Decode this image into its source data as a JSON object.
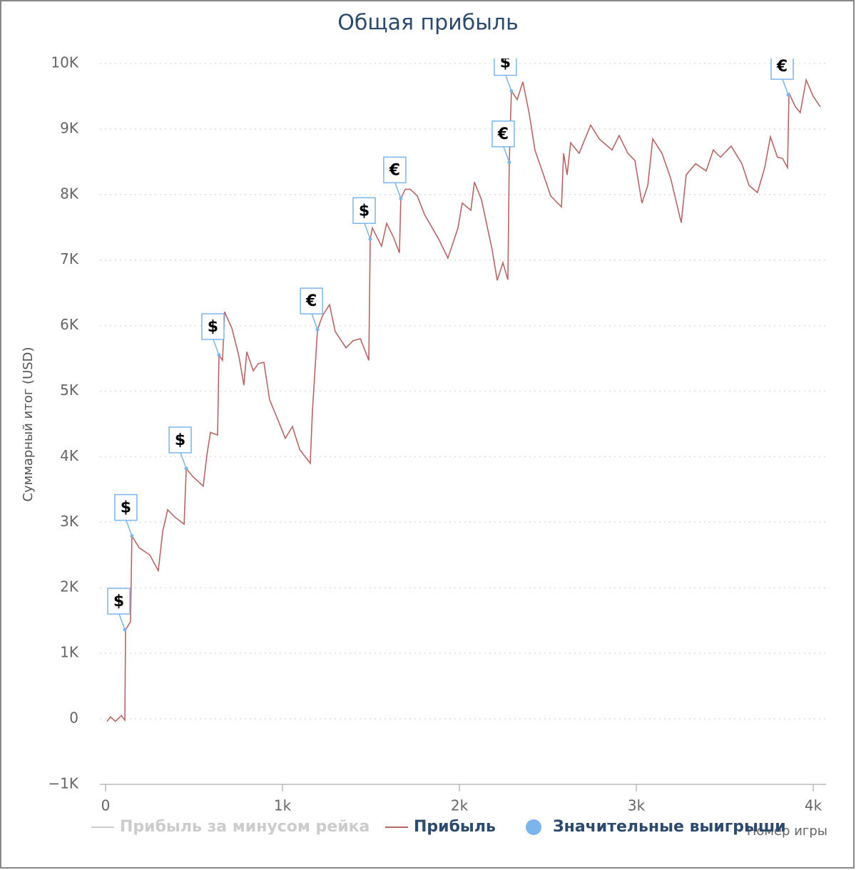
{
  "chart_data": {
    "type": "line",
    "title": "Общая прибыль",
    "x_label": "Номер игры",
    "y_label": "Суммарный итог (USD)",
    "xlim": [
      -30,
      4050
    ],
    "ylim": [
      -1000,
      10000
    ],
    "xticks": [
      0,
      {
        "value": 1000,
        "label": "1k"
      },
      {
        "value": 2000,
        "label": "2k"
      },
      {
        "value": 3000,
        "label": "3k"
      },
      {
        "value": 4000,
        "label": "4k"
      }
    ],
    "yticks": [
      {
        "value": -1000,
        "label": "−1K"
      },
      0,
      {
        "value": 1000,
        "label": "1K"
      },
      {
        "value": 2000,
        "label": "2K"
      },
      {
        "value": 3000,
        "label": "3K"
      },
      {
        "value": 4000,
        "label": "4K"
      },
      {
        "value": 5000,
        "label": "5K"
      },
      {
        "value": 6000,
        "label": "6K"
      },
      {
        "value": 7000,
        "label": "7K"
      },
      {
        "value": 8000,
        "label": "8K"
      },
      {
        "value": 9000,
        "label": "9K"
      },
      {
        "value": 10000,
        "label": "10K"
      }
    ],
    "grid": true,
    "series": [
      {
        "name": "Прибыль за минусом рейка",
        "color": "#cccccc",
        "visible": false
      },
      {
        "name": "Прибыль",
        "color": "#b86664",
        "x": [
          8,
          28,
          56,
          89,
          109,
          113,
          141,
          149,
          190,
          250,
          298,
          323,
          351,
          391,
          444,
          456,
          492,
          552,
          573,
          593,
          633,
          641,
          661,
          673,
          714,
          754,
          782,
          798,
          835,
          863,
          895,
          927,
          976,
          1016,
          1056,
          1097,
          1157,
          1169,
          1198,
          1226,
          1266,
          1298,
          1359,
          1399,
          1440,
          1488,
          1496,
          1508,
          1560,
          1589,
          1629,
          1661,
          1669,
          1694,
          1722,
          1762,
          1802,
          1883,
          1935,
          1992,
          2016,
          2065,
          2085,
          2125,
          2185,
          2214,
          2246,
          2274,
          2282,
          2294,
          2327,
          2359,
          2395,
          2427,
          2468,
          2516,
          2577,
          2589,
          2609,
          2629,
          2677,
          2742,
          2790,
          2863,
          2903,
          2952,
          2992,
          3032,
          3065,
          3093,
          3145,
          3194,
          3254,
          3282,
          3335,
          3395,
          3435,
          3476,
          3536,
          3597,
          3637,
          3685,
          3726,
          3758,
          3798,
          3827,
          3855,
          3863,
          3899,
          3927,
          3960,
          4000,
          4040
        ],
        "values": [
          -40,
          30,
          -40,
          50,
          -20,
          1360,
          1480,
          2790,
          2610,
          2500,
          2260,
          2860,
          3190,
          3080,
          2970,
          3820,
          3700,
          3550,
          4030,
          4370,
          4330,
          5550,
          5470,
          6210,
          5960,
          5530,
          5090,
          5600,
          5310,
          5420,
          5440,
          4870,
          4550,
          4280,
          4460,
          4110,
          3900,
          4680,
          5940,
          6150,
          6320,
          5910,
          5660,
          5770,
          5800,
          5470,
          7320,
          7490,
          7210,
          7560,
          7340,
          7110,
          7940,
          8080,
          8080,
          7980,
          7700,
          7320,
          7030,
          7490,
          7870,
          7760,
          8190,
          7920,
          7160,
          6690,
          6960,
          6700,
          8490,
          9580,
          9450,
          9720,
          9230,
          8680,
          8360,
          7980,
          7810,
          8630,
          8300,
          8790,
          8630,
          9060,
          8850,
          8680,
          8900,
          8630,
          8520,
          7870,
          8140,
          8850,
          8630,
          8250,
          7570,
          8300,
          8470,
          8360,
          8680,
          8570,
          8740,
          8470,
          8140,
          8030,
          8410,
          8880,
          8570,
          8550,
          8410,
          9550,
          9340,
          9250,
          9750,
          9500,
          9340
        ]
      },
      {
        "name": "Значительные выигрыши",
        "type": "scatter",
        "color": "#7cb5ec",
        "x": [
          109,
          149,
          456,
          641,
          1198,
          1496,
          1669,
          2282,
          2294,
          3859
        ],
        "values": [
          1360,
          2790,
          3820,
          5550,
          5940,
          7320,
          7940,
          8490,
          9580,
          9520
        ],
        "labels": [
          "$",
          "$",
          "$",
          "$",
          "€",
          "$",
          "€",
          "€",
          "$",
          "€"
        ]
      }
    ]
  }
}
